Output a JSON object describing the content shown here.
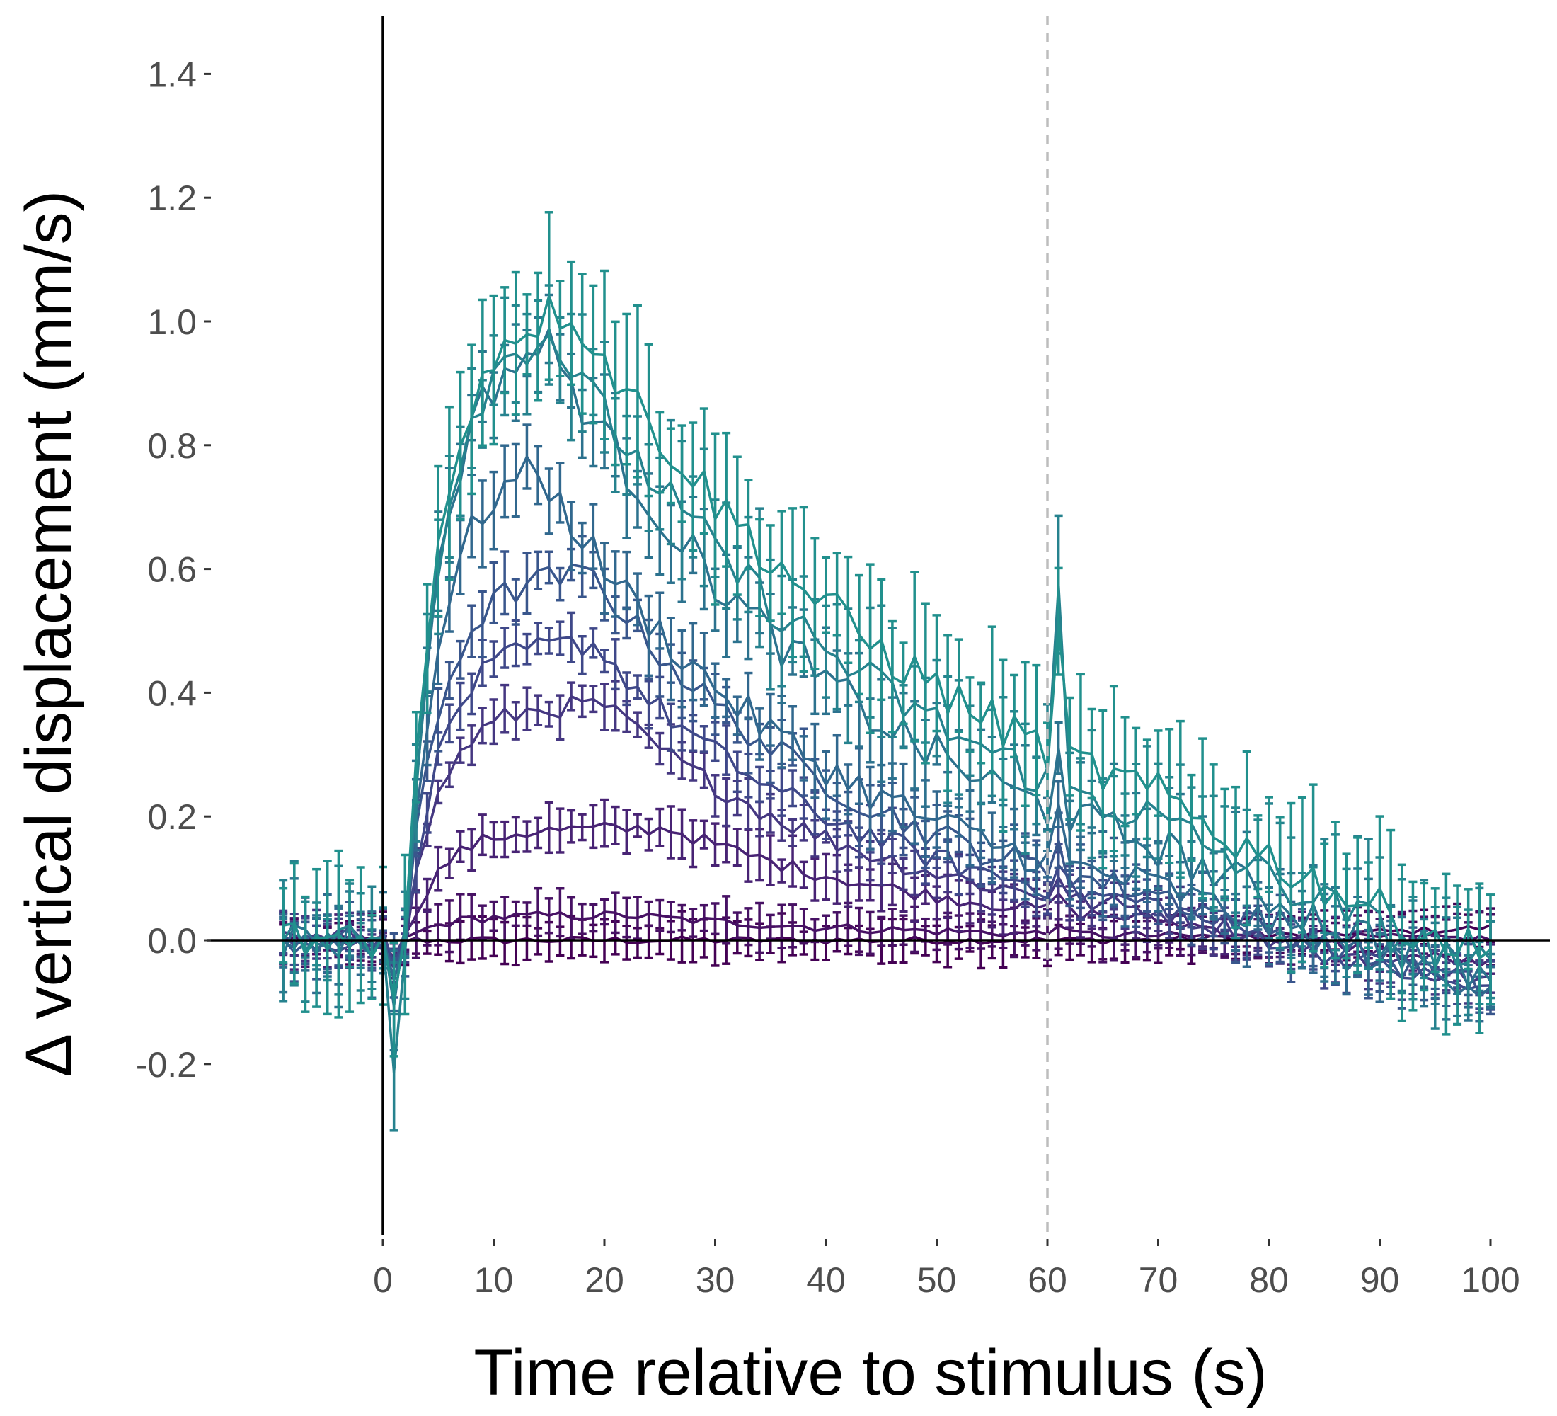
{
  "chart_data": {
    "type": "line",
    "title": "",
    "xlabel": "Time relative to stimulus (s)",
    "ylabel": "Δ vertical displacement (mm/s)",
    "xlim": [
      -12,
      105
    ],
    "ylim": [
      -0.48,
      1.49
    ],
    "x_ticks": [
      0,
      10,
      20,
      30,
      40,
      50,
      60,
      70,
      80,
      90,
      100
    ],
    "x_tick_labels": [
      "0",
      "10",
      "20",
      "30",
      "40",
      "50",
      "60",
      "70",
      "80",
      "90",
      "100"
    ],
    "y_ticks": [
      -0.2,
      0,
      0.2,
      0.4,
      0.6,
      0.8,
      1.0,
      1.2,
      1.4
    ],
    "y_tick_labels": [
      "-0.2",
      "0.0",
      "0.2",
      "0.4",
      "0.6",
      "0.8",
      "1.0",
      "1.2",
      "1.4"
    ],
    "reference_lines": {
      "x_zero": 0,
      "y_zero": 0,
      "x_dashed": 60,
      "dashed_color": "#bdbdbd"
    },
    "grid": false,
    "legend": "none",
    "x_range": [
      -9,
      100
    ],
    "stimulus_onset": 2,
    "series": [
      {
        "color": "#440154",
        "peak": 0.0,
        "peak_time": 20,
        "decay": 30,
        "spike": 0.0,
        "error": 0.03,
        "dip": 0.04,
        "tail": 0.02
      },
      {
        "color": "#471164",
        "peak": 0.04,
        "peak_time": 22,
        "decay": 28,
        "spike": 0.02,
        "error": 0.03,
        "dip": 0.03,
        "tail": 0.0
      },
      {
        "color": "#482374",
        "peak": 0.18,
        "peak_time": 26,
        "decay": 26,
        "spike": 0.03,
        "error": 0.03,
        "dip": 0.02,
        "tail": -0.05
      },
      {
        "color": "#453781",
        "peak": 0.38,
        "peak_time": 20,
        "decay": 24,
        "spike": 0.04,
        "error": 0.03,
        "dip": 0.03,
        "tail": -0.08
      },
      {
        "color": "#3f4889",
        "peak": 0.48,
        "peak_time": 19,
        "decay": 24,
        "spike": 0.05,
        "error": 0.03,
        "dip": 0.03,
        "tail": -0.1
      },
      {
        "color": "#39568c",
        "peak": 0.59,
        "peak_time": 19,
        "decay": 25,
        "spike": 0.06,
        "error": 0.04,
        "dip": 0.04,
        "tail": -0.1
      },
      {
        "color": "#31688e",
        "peak": 0.76,
        "peak_time": 14,
        "decay": 26,
        "spike": 0.08,
        "error": 0.05,
        "dip": 0.06,
        "tail": -0.1
      },
      {
        "color": "#2c728e",
        "peak": 0.96,
        "peak_time": 15,
        "decay": 30,
        "spike": 0.12,
        "error": 0.06,
        "dip": 0.08,
        "tail": -0.12
      },
      {
        "color": "#26828e",
        "peak": 0.98,
        "peak_time": 15,
        "decay": 34,
        "spike": 0.3,
        "error": 0.08,
        "dip": 0.2,
        "tail": -0.13
      },
      {
        "color": "#21908d",
        "peak": 1.02,
        "peak_time": 17,
        "decay": 36,
        "spike": 0.18,
        "error": 0.1,
        "dip": 0.06,
        "tail": -0.13
      }
    ]
  }
}
